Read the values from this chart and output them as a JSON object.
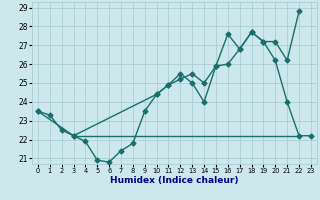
{
  "xlabel": "Humidex (Indice chaleur)",
  "xlim_min": -0.5,
  "xlim_max": 23.5,
  "ylim_min": 20.7,
  "ylim_max": 29.3,
  "yticks": [
    21,
    22,
    23,
    24,
    25,
    26,
    27,
    28,
    29
  ],
  "xticks": [
    0,
    1,
    2,
    3,
    4,
    5,
    6,
    7,
    8,
    9,
    10,
    11,
    12,
    13,
    14,
    15,
    16,
    17,
    18,
    19,
    20,
    21,
    22,
    23
  ],
  "line1_x": [
    0,
    1,
    2,
    3,
    4,
    5,
    6,
    7,
    8,
    9,
    10,
    11,
    12,
    13,
    14,
    15,
    16,
    17,
    18,
    19,
    20,
    21,
    22,
    23
  ],
  "line1_y": [
    23.5,
    23.3,
    22.5,
    22.2,
    21.9,
    20.9,
    20.8,
    21.4,
    21.8,
    23.5,
    24.4,
    24.9,
    25.5,
    25.0,
    24.0,
    25.9,
    27.6,
    26.8,
    27.7,
    27.2,
    26.2,
    24.0,
    22.2,
    22.2
  ],
  "line2_x": [
    0,
    3,
    10,
    11,
    12,
    13,
    14,
    15,
    16,
    17,
    18,
    19,
    20,
    21,
    22
  ],
  "line2_y": [
    23.5,
    22.2,
    24.4,
    24.9,
    25.2,
    25.5,
    25.0,
    25.9,
    26.0,
    26.8,
    27.7,
    27.2,
    27.2,
    26.2,
    28.8
  ],
  "line3_x": [
    3,
    22
  ],
  "line3_y": [
    22.2,
    22.2
  ],
  "color": "#1a6e6e",
  "bg_color": "#cce8ec",
  "grid_color": "#aacdd4",
  "marker": "D",
  "marker_size": 2.5,
  "linewidth": 1.0,
  "xlabel_color": "#00008b",
  "xlabel_fontsize": 6.5,
  "tick_fontsize": 5.5,
  "tick_color": "#000000"
}
